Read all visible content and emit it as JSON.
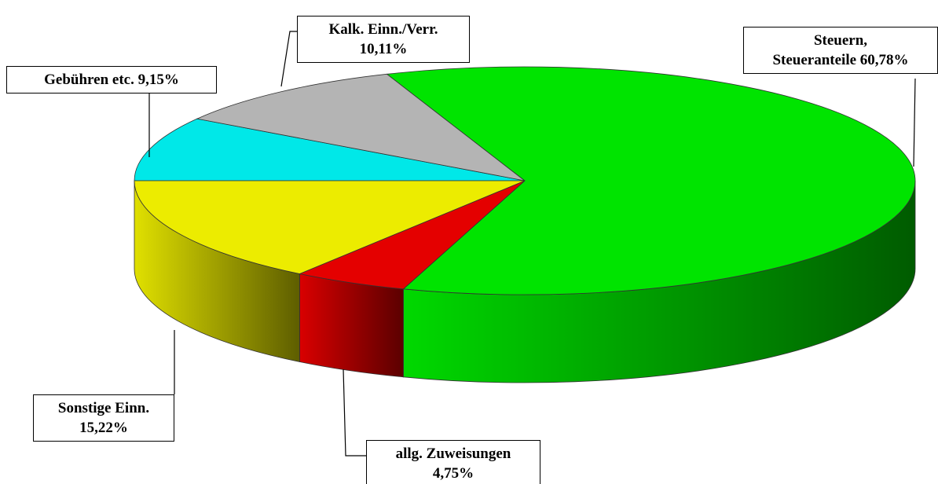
{
  "chart_data": {
    "type": "pie3d",
    "categories": [
      "Gebühren etc.",
      "Kalk. Einn./Verr.",
      "Steuern,\nSteueranteile",
      "allg. Zuweisungen",
      "Sonstige Einn."
    ],
    "values": [
      9.15,
      10.11,
      60.78,
      4.75,
      15.22
    ],
    "value_labels": [
      "9,15%",
      "10,11%",
      "60,78%",
      "4,75%",
      "15,22%"
    ],
    "colors": [
      "#00e8e8",
      "#b4b4b4",
      "#00e400",
      "#e40000",
      "#ecec00"
    ]
  }
}
